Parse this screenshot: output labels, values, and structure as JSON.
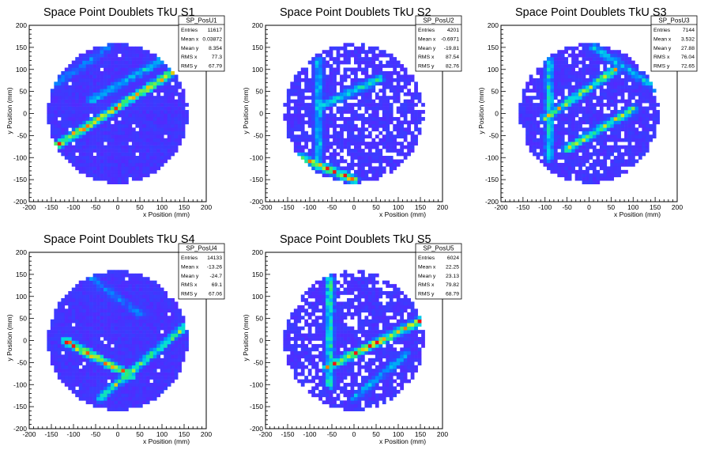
{
  "chart_data": [
    {
      "type": "heatmap",
      "title": "Space Point Doublets TkU S1",
      "xlabel": "x Position (mm)",
      "ylabel": "y Position (mm)",
      "xlim": [
        -200,
        200
      ],
      "ylim": [
        -200,
        200
      ],
      "xticks": [
        -200,
        -150,
        -100,
        -50,
        0,
        50,
        100,
        150,
        200
      ],
      "yticks": [
        -200,
        -150,
        -100,
        -50,
        0,
        50,
        100,
        150,
        200
      ],
      "detector_radius": 160,
      "stats": {
        "name": "SP_PosU1",
        "rows": [
          {
            "label": "Entries",
            "value": "11617"
          },
          {
            "label": "Mean x",
            "value": "0.03872"
          },
          {
            "label": "Mean y",
            "value": "8.354"
          },
          {
            "label": "RMS x",
            "value": "77.3"
          },
          {
            "label": "RMS y",
            "value": "67.79"
          }
        ]
      },
      "lines": [
        [
          -150,
          -80,
          150,
          110,
          1.0
        ],
        [
          -60,
          30,
          150,
          150,
          0.5
        ],
        [
          -150,
          60,
          -20,
          150,
          0.3
        ]
      ],
      "density": "high"
    },
    {
      "type": "heatmap",
      "title": "Space Point Doublets TkU S2",
      "xlabel": "x Position (mm)",
      "ylabel": "y Position (mm)",
      "xlim": [
        -200,
        200
      ],
      "ylim": [
        -200,
        200
      ],
      "xticks": [
        -200,
        -150,
        -100,
        -50,
        0,
        50,
        100,
        150,
        200
      ],
      "yticks": [
        -200,
        -150,
        -100,
        -50,
        0,
        50,
        100,
        150,
        200
      ],
      "detector_radius": 160,
      "stats": {
        "name": "SP_PosU2",
        "rows": [
          {
            "label": "Entries",
            "value": "4201"
          },
          {
            "label": "Mean x",
            "value": "-0.6971"
          },
          {
            "label": "Mean y",
            "value": "-19.81"
          },
          {
            "label": "RMS x",
            "value": "87.54"
          },
          {
            "label": "RMS y",
            "value": "82.76"
          }
        ]
      },
      "lines": [
        [
          -120,
          -100,
          0,
          -150,
          1.0
        ],
        [
          -70,
          20,
          60,
          80,
          0.6
        ],
        [
          -80,
          -100,
          -80,
          120,
          0.5
        ]
      ],
      "density": "low"
    },
    {
      "type": "heatmap",
      "title": "Space Point Doublets TkU S3",
      "xlabel": "x Position (mm)",
      "ylabel": "y Position (mm)",
      "xlim": [
        -200,
        200
      ],
      "ylim": [
        -200,
        200
      ],
      "xticks": [
        -200,
        -150,
        -100,
        -50,
        0,
        50,
        100,
        150,
        200
      ],
      "yticks": [
        -200,
        -150,
        -100,
        -50,
        0,
        50,
        100,
        150,
        200
      ],
      "detector_radius": 160,
      "stats": {
        "name": "SP_PosU3",
        "rows": [
          {
            "label": "Entries",
            "value": "7144"
          },
          {
            "label": "Mean x",
            "value": "3.532"
          },
          {
            "label": "Mean y",
            "value": "27.88"
          },
          {
            "label": "RMS x",
            "value": "76.04"
          },
          {
            "label": "RMS y",
            "value": "72.65"
          }
        ]
      },
      "lines": [
        [
          -100,
          -10,
          60,
          100,
          0.8
        ],
        [
          -50,
          -80,
          100,
          10,
          0.8
        ],
        [
          -90,
          -100,
          -90,
          120,
          0.6
        ],
        [
          10,
          150,
          150,
          60,
          0.5
        ]
      ],
      "density": "medium"
    },
    {
      "type": "heatmap",
      "title": "Space Point Doublets TkU S4",
      "xlabel": "x Position (mm)",
      "ylabel": "y Position (mm)",
      "xlim": [
        -200,
        200
      ],
      "ylim": [
        -200,
        200
      ],
      "xticks": [
        -200,
        -150,
        -100,
        -50,
        0,
        50,
        100,
        150,
        200
      ],
      "yticks": [
        -200,
        -150,
        -100,
        -50,
        0,
        50,
        100,
        150,
        200
      ],
      "detector_radius": 160,
      "stats": {
        "name": "SP_PosU4",
        "rows": [
          {
            "label": "Entries",
            "value": "14133"
          },
          {
            "label": "Mean x",
            "value": "-13.26"
          },
          {
            "label": "Mean y",
            "value": "-24.7"
          },
          {
            "label": "RMS x",
            "value": "69.1"
          },
          {
            "label": "RMS y",
            "value": "67.06"
          }
        ]
      },
      "lines": [
        [
          -120,
          0,
          30,
          -80,
          1.0
        ],
        [
          -40,
          -130,
          150,
          30,
          0.7
        ],
        [
          -60,
          140,
          50,
          60,
          0.3
        ]
      ],
      "density": "high"
    },
    {
      "type": "heatmap",
      "title": "Space Point Doublets TkU S5",
      "xlabel": "x Position (mm)",
      "ylabel": "y Position (mm)",
      "xlim": [
        -200,
        200
      ],
      "ylim": [
        -200,
        200
      ],
      "xticks": [
        -200,
        -150,
        -100,
        -50,
        0,
        50,
        100,
        150,
        200
      ],
      "yticks": [
        -200,
        -150,
        -100,
        -50,
        0,
        50,
        100,
        150,
        200
      ],
      "detector_radius": 160,
      "stats": {
        "name": "SP_PosU5",
        "rows": [
          {
            "label": "Entries",
            "value": "6024"
          },
          {
            "label": "Mean x",
            "value": "22.25"
          },
          {
            "label": "Mean y",
            "value": "23.13"
          },
          {
            "label": "RMS x",
            "value": "79.82"
          },
          {
            "label": "RMS y",
            "value": "68.79"
          }
        ]
      },
      "lines": [
        [
          -60,
          -60,
          160,
          50,
          1.0
        ],
        [
          -55,
          -100,
          -55,
          140,
          0.7
        ],
        [
          0,
          -130,
          120,
          -30,
          0.4
        ]
      ],
      "density": "low"
    }
  ]
}
